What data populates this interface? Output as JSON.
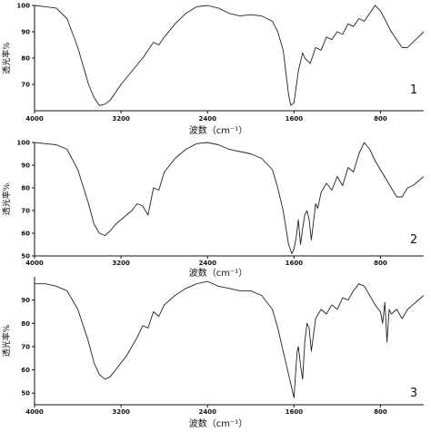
{
  "chart_data": [
    {
      "type": "line",
      "panel_label": "1",
      "xlabel": "波数（cm⁻¹）",
      "ylabel": "透光率%",
      "xlim": [
        4000,
        400
      ],
      "ylim": [
        60,
        100
      ],
      "x_ticks": [
        4000,
        3200,
        2400,
        1600,
        800
      ],
      "y_ticks": [
        70,
        80,
        90,
        100
      ],
      "series": [
        {
          "x": [
            4000,
            3900,
            3800,
            3700,
            3600,
            3500,
            3450,
            3400,
            3350,
            3300,
            3250,
            3200,
            3100,
            3000,
            2900,
            2850,
            2800,
            2700,
            2600,
            2500,
            2400,
            2300,
            2200,
            2100,
            2000,
            1900,
            1800,
            1750,
            1700,
            1650,
            1630,
            1600,
            1560,
            1520,
            1500,
            1450,
            1400,
            1350,
            1300,
            1250,
            1200,
            1150,
            1100,
            1050,
            1000,
            950,
            900,
            850,
            800,
            750,
            700,
            650,
            600,
            550,
            500,
            450,
            400
          ],
          "y": [
            100,
            99.5,
            99,
            95,
            84,
            70,
            65,
            62,
            62.5,
            64,
            67,
            70,
            75,
            80,
            86,
            85,
            88,
            93,
            97,
            99.5,
            100,
            99,
            97,
            96,
            96.5,
            96,
            94,
            90,
            83,
            66,
            62,
            63,
            75,
            82,
            80,
            78,
            84,
            83,
            88,
            87,
            90,
            89,
            93,
            92,
            95,
            94,
            97,
            100,
            98,
            94,
            90,
            87,
            84,
            84,
            86,
            88,
            90
          ]
        }
      ]
    },
    {
      "type": "line",
      "panel_label": "2",
      "xlabel": "波数（cm⁻¹）",
      "ylabel": "透光率%",
      "xlim": [
        4000,
        400
      ],
      "ylim": [
        50,
        100
      ],
      "x_ticks": [
        4000,
        3200,
        2400,
        1600,
        800
      ],
      "y_ticks": [
        50,
        60,
        70,
        80,
        90,
        100
      ],
      "series": [
        {
          "x": [
            4000,
            3900,
            3800,
            3700,
            3600,
            3500,
            3450,
            3400,
            3350,
            3300,
            3250,
            3200,
            3100,
            3050,
            3000,
            2950,
            2900,
            2850,
            2800,
            2700,
            2600,
            2500,
            2400,
            2300,
            2200,
            2100,
            2000,
            1900,
            1800,
            1750,
            1700,
            1650,
            1620,
            1600,
            1580,
            1560,
            1540,
            1520,
            1500,
            1480,
            1460,
            1440,
            1400,
            1380,
            1350,
            1300,
            1250,
            1200,
            1150,
            1100,
            1050,
            1000,
            950,
            900,
            850,
            800,
            750,
            700,
            650,
            600,
            550,
            500,
            450,
            400
          ],
          "y": [
            100,
            99.5,
            99,
            97,
            88,
            73,
            64,
            60,
            59,
            61,
            64,
            66,
            70,
            73,
            72,
            68,
            80,
            79,
            87,
            93,
            97,
            99.5,
            100,
            99,
            97,
            96,
            95,
            93,
            88,
            80,
            70,
            55,
            51,
            53,
            58,
            66,
            55,
            62,
            68,
            70,
            66,
            57,
            73,
            71,
            78,
            82,
            79,
            85,
            81,
            89,
            87,
            95,
            100,
            97,
            92,
            88,
            84,
            80,
            76,
            76,
            80,
            81,
            83,
            85
          ]
        }
      ]
    },
    {
      "type": "line",
      "panel_label": "3",
      "xlabel": "波数（cm⁻¹）",
      "ylabel": "透光率%",
      "xlim": [
        4000,
        400
      ],
      "ylim": [
        45,
        100
      ],
      "x_ticks": [
        4000,
        3200,
        2400,
        1600,
        800
      ],
      "y_ticks": [
        50,
        60,
        70,
        80,
        90
      ],
      "series": [
        {
          "x": [
            4000,
            3900,
            3800,
            3700,
            3600,
            3500,
            3450,
            3400,
            3350,
            3300,
            3250,
            3200,
            3150,
            3100,
            3050,
            3000,
            2950,
            2900,
            2850,
            2800,
            2700,
            2600,
            2500,
            2400,
            2300,
            2200,
            2100,
            2000,
            1900,
            1800,
            1750,
            1700,
            1650,
            1620,
            1600,
            1580,
            1570,
            1560,
            1540,
            1520,
            1500,
            1480,
            1460,
            1440,
            1400,
            1350,
            1300,
            1250,
            1200,
            1150,
            1100,
            1050,
            1000,
            950,
            900,
            850,
            800,
            780,
            760,
            740,
            720,
            700,
            650,
            600,
            550,
            500,
            450,
            400
          ],
          "y": [
            97,
            97,
            96,
            94,
            86,
            72,
            63,
            58,
            56,
            57,
            60,
            63,
            66,
            70,
            74,
            79,
            78,
            85,
            83,
            88,
            92,
            95,
            97,
            98,
            96,
            95,
            94,
            94,
            92,
            86,
            78,
            68,
            58,
            52,
            48,
            62,
            68,
            70,
            62,
            56,
            72,
            80,
            78,
            68,
            82,
            86,
            84,
            88,
            86,
            91,
            90,
            94,
            97,
            96,
            92,
            88,
            85,
            80,
            89,
            72,
            86,
            84,
            86,
            82,
            86,
            88,
            90,
            92
          ]
        }
      ]
    }
  ]
}
